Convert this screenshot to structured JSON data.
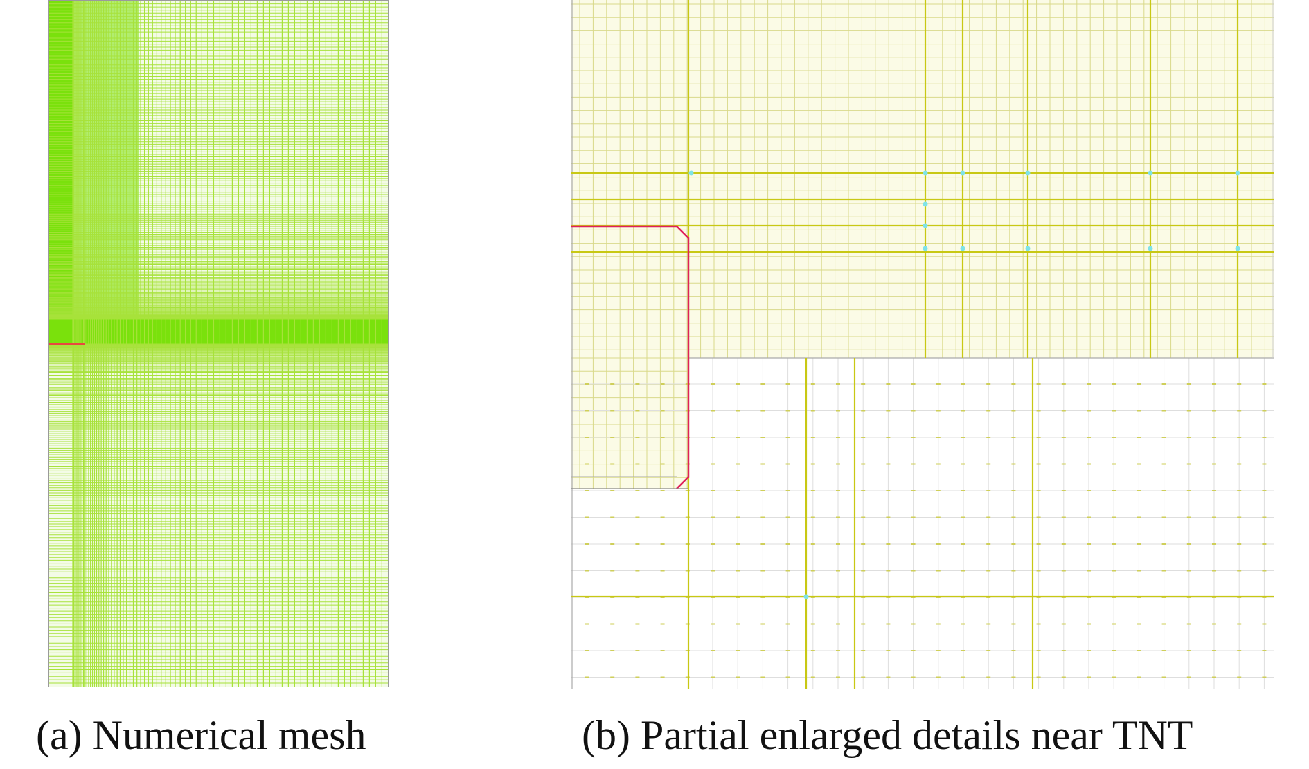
{
  "figure": {
    "panel_a": {
      "caption": "(a) Numerical mesh",
      "colors": {
        "dense_mesh": "#7ae10c",
        "mesh_line": "#a7e23a",
        "boundary": "#e8483f"
      }
    },
    "panel_b": {
      "caption": "(b) Partial enlarged details near TNT",
      "colors": {
        "grid_line": "#cfcf5a",
        "major_line": "#c8c814",
        "fine_region_fill": "#fbfbe6",
        "fine_line": "#d9d98a",
        "coarse_line": "#dedede",
        "tnt_boundary": "#e0205a",
        "node_marker": "#7fe3e8"
      }
    }
  }
}
